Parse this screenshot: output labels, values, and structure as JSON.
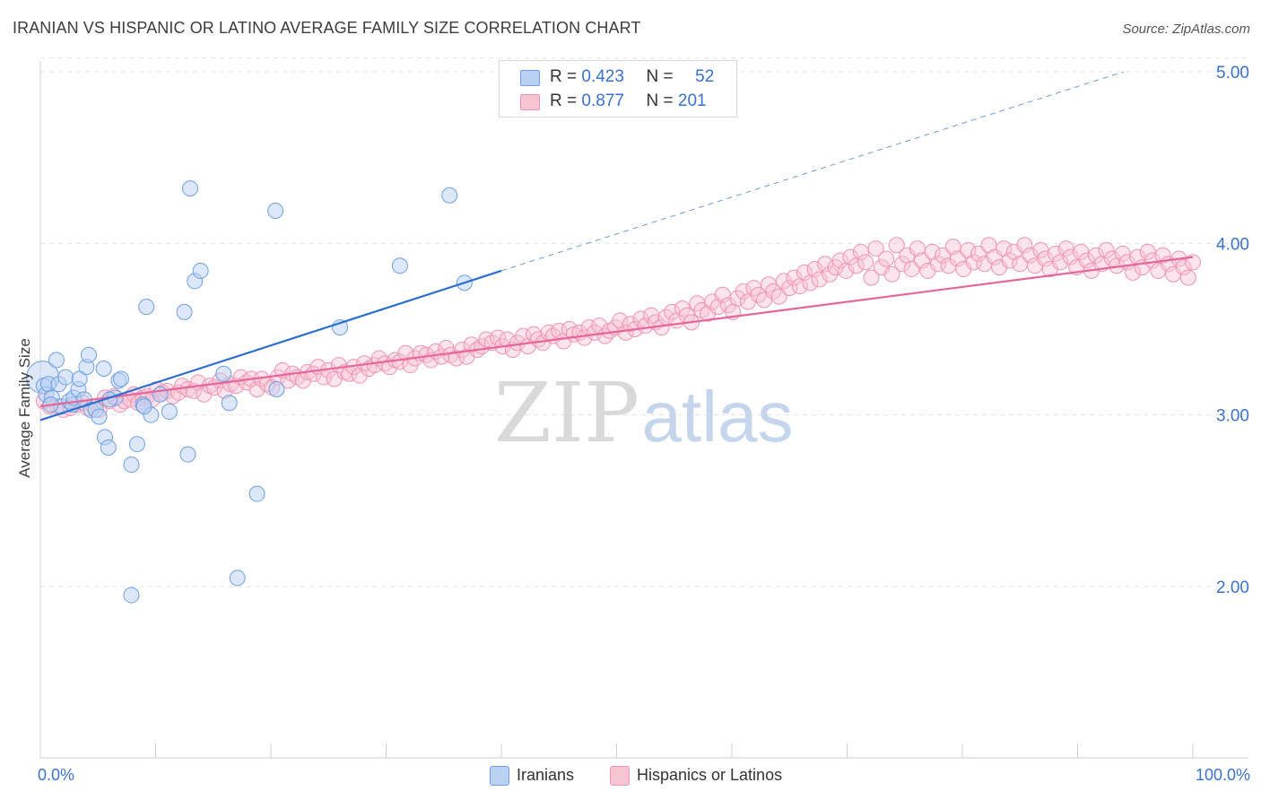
{
  "header": {
    "title": "IRANIAN VS HISPANIC OR LATINO AVERAGE FAMILY SIZE CORRELATION CHART",
    "source": "Source: ZipAtlas.com"
  },
  "legend_stats": [
    {
      "r_label": "R =",
      "r_value": "0.423",
      "n_label": "N =",
      "n_value": "52"
    },
    {
      "r_label": "R =",
      "r_value": "0.877",
      "n_label": "N =",
      "n_value": "201"
    }
  ],
  "watermark": {
    "left": "ZIP",
    "right": "atlas"
  },
  "colors": {
    "iranians_fill": "#b9d2f4",
    "iranians_stroke": "#6f9fe0",
    "iranians_line": "#2a6fd0",
    "hispanic_fill": "#f7c4d4",
    "hispanic_stroke": "#ef93b1",
    "hispanic_line": "#e5679a",
    "tick_label": "#3a72cf",
    "grid": "#e3e3e3"
  },
  "chart_data": {
    "type": "scatter",
    "title": "IRANIAN VS HISPANIC OR LATINO AVERAGE FAMILY SIZE CORRELATION CHART",
    "xlabel": "",
    "ylabel": "Average Family Size",
    "xlim": [
      0,
      100
    ],
    "ylim": [
      1.0,
      5.1
    ],
    "x_tick_labels": [
      "0.0%",
      "100.0%"
    ],
    "y_ticks": [
      2.0,
      3.0,
      4.0,
      5.0
    ],
    "y_tick_labels": [
      "2.00",
      "3.00",
      "4.00",
      "5.00"
    ],
    "grid": true,
    "legend_position": "bottom-center",
    "series": [
      {
        "name": "Iranians",
        "r": 0.423,
        "n": 52,
        "trend": {
          "x": [
            0,
            40
          ],
          "y": [
            2.97,
            3.84
          ]
        },
        "trend_extension": {
          "x": [
            40,
            94
          ],
          "y": [
            3.84,
            5.0
          ]
        },
        "points": [
          [
            0.2,
            3.22
          ],
          [
            0.3,
            3.17
          ],
          [
            0.5,
            3.12
          ],
          [
            0.7,
            3.18
          ],
          [
            1.0,
            3.1
          ],
          [
            1.4,
            3.32
          ],
          [
            1.6,
            3.18
          ],
          [
            1.8,
            3.05
          ],
          [
            2.2,
            3.22
          ],
          [
            2.5,
            3.08
          ],
          [
            2.8,
            3.06
          ],
          [
            2.9,
            3.1
          ],
          [
            3.3,
            3.15
          ],
          [
            3.4,
            3.21
          ],
          [
            3.8,
            3.09
          ],
          [
            4.0,
            3.28
          ],
          [
            4.2,
            3.35
          ],
          [
            4.4,
            3.03
          ],
          [
            4.8,
            3.03
          ],
          [
            5.1,
            2.99
          ],
          [
            5.5,
            3.27
          ],
          [
            5.6,
            2.87
          ],
          [
            5.9,
            2.81
          ],
          [
            6.5,
            3.1
          ],
          [
            6.8,
            3.2
          ],
          [
            7.0,
            3.21
          ],
          [
            7.9,
            2.71
          ],
          [
            8.4,
            2.83
          ],
          [
            8.9,
            3.06
          ],
          [
            9.2,
            3.63
          ],
          [
            9.6,
            3.0
          ],
          [
            10.4,
            3.12
          ],
          [
            11.2,
            3.02
          ],
          [
            12.5,
            3.6
          ],
          [
            12.8,
            2.77
          ],
          [
            13.0,
            4.32
          ],
          [
            13.4,
            3.78
          ],
          [
            13.9,
            3.84
          ],
          [
            15.9,
            3.24
          ],
          [
            16.4,
            3.07
          ],
          [
            17.1,
            2.05
          ],
          [
            18.8,
            2.54
          ],
          [
            20.4,
            4.19
          ],
          [
            20.5,
            3.15
          ],
          [
            26.0,
            3.51
          ],
          [
            31.2,
            3.87
          ],
          [
            35.5,
            4.28
          ],
          [
            36.8,
            3.77
          ],
          [
            7.9,
            1.95
          ],
          [
            0.9,
            3.06
          ],
          [
            9.0,
            3.05
          ],
          [
            6.0,
            3.09
          ]
        ]
      },
      {
        "name": "Hispanics or Latinos",
        "r": 0.877,
        "n": 201,
        "trend": {
          "x": [
            0,
            100
          ],
          "y": [
            3.05,
            3.92
          ]
        },
        "points": [
          [
            0.3,
            3.08
          ],
          [
            0.8,
            3.05
          ],
          [
            1.5,
            3.05
          ],
          [
            2.0,
            3.03
          ],
          [
            2.6,
            3.04
          ],
          [
            3.2,
            3.06
          ],
          [
            3.7,
            3.07
          ],
          [
            4.1,
            3.04
          ],
          [
            4.6,
            3.05
          ],
          [
            5.1,
            3.03
          ],
          [
            5.6,
            3.1
          ],
          [
            6.0,
            3.08
          ],
          [
            6.4,
            3.11
          ],
          [
            6.9,
            3.06
          ],
          [
            7.3,
            3.08
          ],
          [
            7.8,
            3.09
          ],
          [
            8.1,
            3.12
          ],
          [
            8.5,
            3.07
          ],
          [
            8.9,
            3.1
          ],
          [
            9.3,
            3.11
          ],
          [
            9.7,
            3.09
          ],
          [
            10.1,
            3.15
          ],
          [
            10.6,
            3.13
          ],
          [
            11.0,
            3.14
          ],
          [
            11.5,
            3.11
          ],
          [
            12.0,
            3.13
          ],
          [
            12.3,
            3.17
          ],
          [
            12.8,
            3.15
          ],
          [
            13.3,
            3.14
          ],
          [
            13.7,
            3.19
          ],
          [
            14.2,
            3.12
          ],
          [
            14.7,
            3.17
          ],
          [
            15.1,
            3.16
          ],
          [
            15.6,
            3.2
          ],
          [
            16.0,
            3.14
          ],
          [
            16.5,
            3.18
          ],
          [
            17.0,
            3.17
          ],
          [
            17.4,
            3.22
          ],
          [
            17.9,
            3.19
          ],
          [
            18.3,
            3.21
          ],
          [
            18.8,
            3.15
          ],
          [
            19.2,
            3.21
          ],
          [
            19.7,
            3.18
          ],
          [
            20.1,
            3.16
          ],
          [
            20.6,
            3.22
          ],
          [
            21.0,
            3.26
          ],
          [
            21.5,
            3.2
          ],
          [
            21.9,
            3.24
          ],
          [
            22.3,
            3.22
          ],
          [
            22.8,
            3.2
          ],
          [
            23.2,
            3.25
          ],
          [
            23.7,
            3.24
          ],
          [
            24.1,
            3.28
          ],
          [
            24.6,
            3.22
          ],
          [
            25.0,
            3.26
          ],
          [
            25.5,
            3.21
          ],
          [
            25.9,
            3.29
          ],
          [
            26.4,
            3.25
          ],
          [
            26.8,
            3.24
          ],
          [
            27.2,
            3.28
          ],
          [
            27.7,
            3.23
          ],
          [
            28.1,
            3.3
          ],
          [
            28.5,
            3.27
          ],
          [
            29.0,
            3.29
          ],
          [
            29.4,
            3.33
          ],
          [
            29.9,
            3.3
          ],
          [
            30.3,
            3.28
          ],
          [
            30.8,
            3.32
          ],
          [
            31.2,
            3.31
          ],
          [
            31.7,
            3.36
          ],
          [
            32.1,
            3.29
          ],
          [
            32.5,
            3.33
          ],
          [
            33.0,
            3.36
          ],
          [
            33.5,
            3.35
          ],
          [
            33.9,
            3.32
          ],
          [
            34.3,
            3.37
          ],
          [
            34.8,
            3.34
          ],
          [
            35.2,
            3.39
          ],
          [
            35.6,
            3.35
          ],
          [
            36.1,
            3.33
          ],
          [
            36.6,
            3.38
          ],
          [
            37.0,
            3.34
          ],
          [
            37.4,
            3.41
          ],
          [
            37.9,
            3.38
          ],
          [
            38.3,
            3.4
          ],
          [
            38.7,
            3.44
          ],
          [
            39.2,
            3.42
          ],
          [
            39.7,
            3.45
          ],
          [
            40.1,
            3.4
          ],
          [
            40.5,
            3.44
          ],
          [
            41.0,
            3.38
          ],
          [
            41.4,
            3.42
          ],
          [
            41.9,
            3.46
          ],
          [
            42.3,
            3.4
          ],
          [
            42.8,
            3.47
          ],
          [
            43.2,
            3.44
          ],
          [
            43.6,
            3.42
          ],
          [
            44.1,
            3.48
          ],
          [
            44.5,
            3.46
          ],
          [
            45.0,
            3.49
          ],
          [
            45.4,
            3.43
          ],
          [
            45.9,
            3.5
          ],
          [
            46.3,
            3.47
          ],
          [
            46.8,
            3.48
          ],
          [
            47.2,
            3.45
          ],
          [
            47.6,
            3.51
          ],
          [
            48.1,
            3.48
          ],
          [
            48.5,
            3.52
          ],
          [
            49.0,
            3.46
          ],
          [
            49.4,
            3.49
          ],
          [
            49.9,
            3.51
          ],
          [
            50.3,
            3.55
          ],
          [
            50.8,
            3.48
          ],
          [
            51.2,
            3.53
          ],
          [
            51.6,
            3.5
          ],
          [
            52.1,
            3.56
          ],
          [
            52.5,
            3.52
          ],
          [
            53.0,
            3.58
          ],
          [
            53.4,
            3.54
          ],
          [
            53.9,
            3.51
          ],
          [
            54.3,
            3.57
          ],
          [
            54.8,
            3.6
          ],
          [
            55.2,
            3.55
          ],
          [
            55.7,
            3.62
          ],
          [
            56.1,
            3.58
          ],
          [
            56.5,
            3.54
          ],
          [
            57.0,
            3.65
          ],
          [
            57.4,
            3.61
          ],
          [
            57.9,
            3.59
          ],
          [
            58.3,
            3.66
          ],
          [
            58.8,
            3.63
          ],
          [
            59.2,
            3.7
          ],
          [
            59.7,
            3.64
          ],
          [
            60.1,
            3.6
          ],
          [
            60.5,
            3.68
          ],
          [
            61.0,
            3.72
          ],
          [
            61.4,
            3.66
          ],
          [
            61.9,
            3.74
          ],
          [
            62.3,
            3.7
          ],
          [
            62.8,
            3.67
          ],
          [
            63.2,
            3.76
          ],
          [
            63.6,
            3.72
          ],
          [
            64.1,
            3.69
          ],
          [
            64.5,
            3.78
          ],
          [
            65.0,
            3.74
          ],
          [
            65.4,
            3.8
          ],
          [
            65.9,
            3.75
          ],
          [
            66.3,
            3.83
          ],
          [
            66.8,
            3.77
          ],
          [
            67.2,
            3.85
          ],
          [
            67.6,
            3.79
          ],
          [
            68.1,
            3.88
          ],
          [
            68.5,
            3.82
          ],
          [
            69.0,
            3.86
          ],
          [
            69.4,
            3.9
          ],
          [
            69.9,
            3.84
          ],
          [
            70.3,
            3.92
          ],
          [
            70.8,
            3.87
          ],
          [
            71.2,
            3.95
          ],
          [
            71.6,
            3.89
          ],
          [
            72.1,
            3.8
          ],
          [
            72.5,
            3.97
          ],
          [
            73.0,
            3.86
          ],
          [
            73.4,
            3.91
          ],
          [
            73.9,
            3.82
          ],
          [
            74.3,
            3.99
          ],
          [
            74.8,
            3.88
          ],
          [
            75.2,
            3.93
          ],
          [
            75.6,
            3.85
          ],
          [
            76.1,
            3.97
          ],
          [
            76.5,
            3.9
          ],
          [
            77.0,
            3.84
          ],
          [
            77.4,
            3.95
          ],
          [
            77.9,
            3.88
          ],
          [
            78.3,
            3.93
          ],
          [
            78.8,
            3.87
          ],
          [
            79.2,
            3.98
          ],
          [
            79.6,
            3.91
          ],
          [
            80.1,
            3.85
          ],
          [
            80.5,
            3.96
          ],
          [
            81.0,
            3.89
          ],
          [
            81.4,
            3.94
          ],
          [
            81.9,
            3.88
          ],
          [
            82.3,
            3.99
          ],
          [
            82.8,
            3.92
          ],
          [
            83.2,
            3.86
          ],
          [
            83.6,
            3.97
          ],
          [
            84.1,
            3.9
          ],
          [
            84.5,
            3.95
          ],
          [
            85.0,
            3.88
          ],
          [
            85.4,
            3.99
          ],
          [
            85.9,
            3.93
          ],
          [
            86.3,
            3.87
          ],
          [
            86.8,
            3.96
          ],
          [
            87.2,
            3.91
          ],
          [
            87.6,
            3.85
          ],
          [
            88.1,
            3.94
          ],
          [
            88.5,
            3.89
          ],
          [
            89.0,
            3.97
          ],
          [
            89.4,
            3.92
          ],
          [
            89.9,
            3.86
          ],
          [
            90.3,
            3.95
          ],
          [
            90.8,
            3.9
          ],
          [
            91.2,
            3.84
          ],
          [
            91.6,
            3.93
          ],
          [
            92.1,
            3.88
          ],
          [
            92.5,
            3.96
          ],
          [
            93.0,
            3.91
          ],
          [
            93.4,
            3.87
          ],
          [
            93.9,
            3.94
          ],
          [
            94.3,
            3.89
          ],
          [
            94.8,
            3.83
          ],
          [
            95.2,
            3.92
          ],
          [
            95.6,
            3.86
          ],
          [
            96.1,
            3.95
          ],
          [
            96.5,
            3.9
          ],
          [
            97.0,
            3.84
          ],
          [
            97.4,
            3.93
          ],
          [
            97.9,
            3.88
          ],
          [
            98.3,
            3.82
          ],
          [
            98.8,
            3.91
          ],
          [
            99.2,
            3.86
          ],
          [
            99.6,
            3.8
          ],
          [
            100.0,
            3.89
          ]
        ]
      }
    ]
  }
}
